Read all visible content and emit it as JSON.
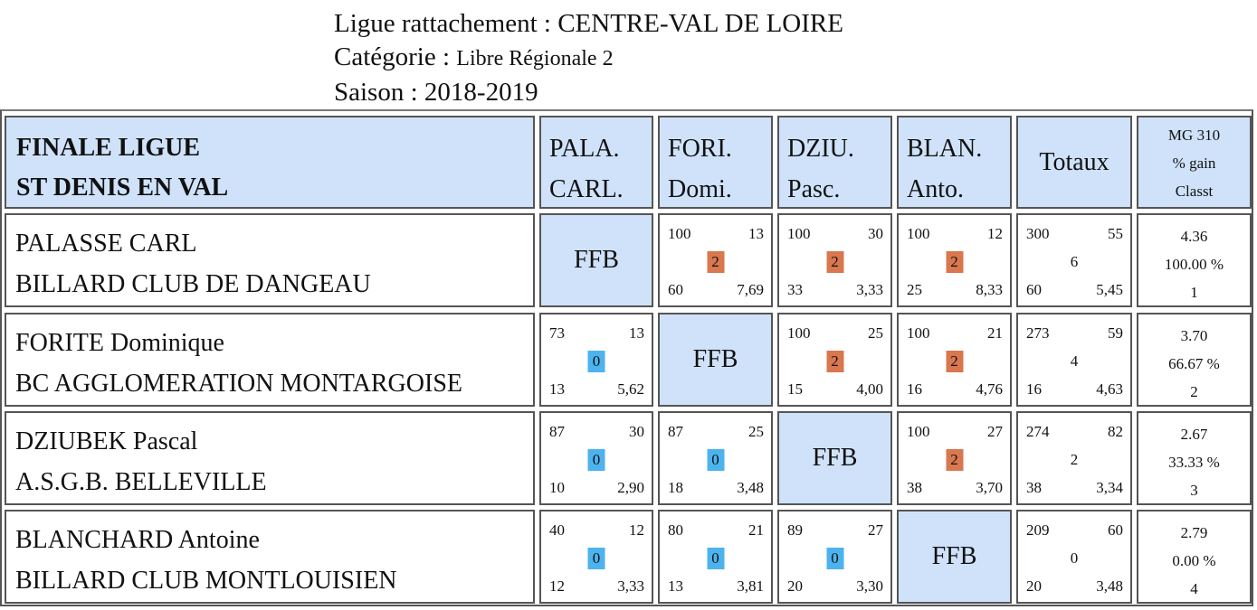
{
  "header": {
    "ligue_label": "Ligue rattachement :",
    "ligue_value": "CENTRE-VAL DE LOIRE",
    "categorie_label": "Catégorie :",
    "categorie_value": "Libre Régionale 2",
    "saison_label": "Saison :",
    "saison_value": "2018-2019"
  },
  "table_header": {
    "title_line1": "FINALE LIGUE",
    "title_line2": "ST DENIS EN VAL",
    "columns": [
      {
        "line1": "PALA.",
        "line2": "CARL."
      },
      {
        "line1": "FORI.",
        "line2": "Domi."
      },
      {
        "line1": "DZIU.",
        "line2": "Pasc."
      },
      {
        "line1": "BLAN.",
        "line2": "Anto."
      }
    ],
    "totaux": "Totaux",
    "mg_line1": "MG 310",
    "mg_line2": "% gain",
    "mg_line3": "Classt"
  },
  "rows": [
    {
      "name": "PALASSE CARL",
      "club": "BILLARD CLUB DE DANGEAU",
      "cells": [
        {
          "ffb": "FFB"
        },
        {
          "points": "100",
          "reprises": "13",
          "match_pts": "2",
          "serie": "60",
          "moyenne": "7,69"
        },
        {
          "points": "100",
          "reprises": "30",
          "match_pts": "2",
          "serie": "33",
          "moyenne": "3,33"
        },
        {
          "points": "100",
          "reprises": "12",
          "match_pts": "2",
          "serie": "25",
          "moyenne": "8,33"
        }
      ],
      "totals": {
        "points": "300",
        "reprises": "55",
        "match_pts": "6",
        "serie": "60",
        "moyenne": "5,45"
      },
      "mg": "4.36",
      "pct": "100.00 %",
      "rank": "1"
    },
    {
      "name": "FORITE Dominique",
      "club": "BC AGGLOMERATION MONTARGOISE",
      "cells": [
        {
          "points": "73",
          "reprises": "13",
          "match_pts": "0",
          "serie": "13",
          "moyenne": "5,62"
        },
        {
          "ffb": "FFB"
        },
        {
          "points": "100",
          "reprises": "25",
          "match_pts": "2",
          "serie": "15",
          "moyenne": "4,00"
        },
        {
          "points": "100",
          "reprises": "21",
          "match_pts": "2",
          "serie": "16",
          "moyenne": "4,76"
        }
      ],
      "totals": {
        "points": "273",
        "reprises": "59",
        "match_pts": "4",
        "serie": "16",
        "moyenne": "4,63"
      },
      "mg": "3.70",
      "pct": "66.67 %",
      "rank": "2"
    },
    {
      "name": "DZIUBEK Pascal",
      "club": "A.S.G.B. BELLEVILLE",
      "cells": [
        {
          "points": "87",
          "reprises": "30",
          "match_pts": "0",
          "serie": "10",
          "moyenne": "2,90"
        },
        {
          "points": "87",
          "reprises": "25",
          "match_pts": "0",
          "serie": "18",
          "moyenne": "3,48"
        },
        {
          "ffb": "FFB"
        },
        {
          "points": "100",
          "reprises": "27",
          "match_pts": "2",
          "serie": "38",
          "moyenne": "3,70"
        }
      ],
      "totals": {
        "points": "274",
        "reprises": "82",
        "match_pts": "2",
        "serie": "38",
        "moyenne": "3,34"
      },
      "mg": "2.67",
      "pct": "33.33 %",
      "rank": "3"
    },
    {
      "name": "BLANCHARD Antoine",
      "club": "BILLARD CLUB MONTLOUISIEN",
      "cells": [
        {
          "points": "40",
          "reprises": "12",
          "match_pts": "0",
          "serie": "12",
          "moyenne": "3,33"
        },
        {
          "points": "80",
          "reprises": "21",
          "match_pts": "0",
          "serie": "13",
          "moyenne": "3,81"
        },
        {
          "points": "89",
          "reprises": "27",
          "match_pts": "0",
          "serie": "20",
          "moyenne": "3,30"
        },
        {
          "ffb": "FFB"
        }
      ],
      "totals": {
        "points": "209",
        "reprises": "60",
        "match_pts": "0",
        "serie": "20",
        "moyenne": "3,48"
      },
      "mg": "2.79",
      "pct": "0.00 %",
      "rank": "4"
    }
  ],
  "colors": {
    "header_bg": "#cfe2fa",
    "win": "#d9774f",
    "loss": "#4db3ee",
    "border": "#555555"
  }
}
